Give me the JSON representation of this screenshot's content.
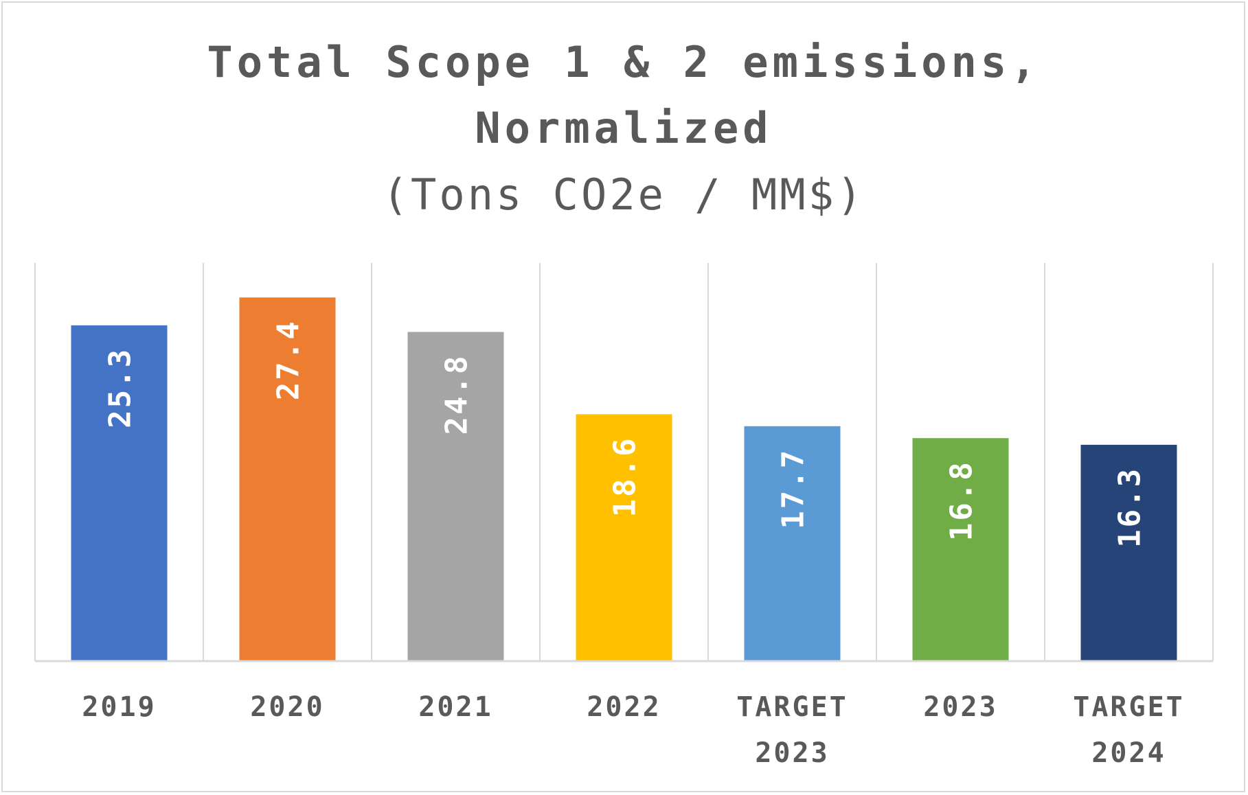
{
  "chart_data": {
    "type": "bar",
    "title_lines": [
      "Total Scope 1 & 2 emissions,",
      "Normalized"
    ],
    "subtitle": "(Tons CO2e / MM$)",
    "categories": [
      [
        "2019"
      ],
      [
        "2020"
      ],
      [
        "2021"
      ],
      [
        "2022"
      ],
      [
        "TARGET",
        "2023"
      ],
      [
        "2023"
      ],
      [
        "TARGET",
        "2024"
      ]
    ],
    "values": [
      25.3,
      27.4,
      24.8,
      18.6,
      17.7,
      16.8,
      16.3
    ],
    "value_labels": [
      "25.3",
      "27.4",
      "24.8",
      "18.6",
      "17.7",
      "16.8",
      "16.3"
    ],
    "colors": [
      "#4472c4",
      "#ed7d31",
      "#a5a5a5",
      "#ffc000",
      "#5b9bd5",
      "#70ad47",
      "#264478"
    ],
    "ylim": [
      0,
      30
    ],
    "grid": "vertical",
    "legend": "none",
    "xlabel": "",
    "ylabel": ""
  }
}
